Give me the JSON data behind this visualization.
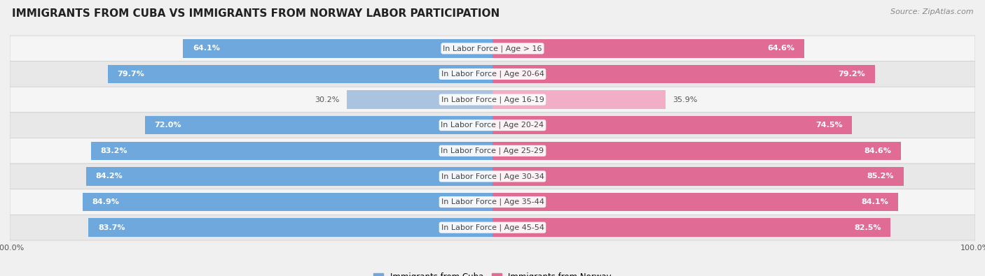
{
  "title": "IMMIGRANTS FROM CUBA VS IMMIGRANTS FROM NORWAY LABOR PARTICIPATION",
  "source": "Source: ZipAtlas.com",
  "categories": [
    "In Labor Force | Age > 16",
    "In Labor Force | Age 20-64",
    "In Labor Force | Age 16-19",
    "In Labor Force | Age 20-24",
    "In Labor Force | Age 25-29",
    "In Labor Force | Age 30-34",
    "In Labor Force | Age 35-44",
    "In Labor Force | Age 45-54"
  ],
  "cuba_values": [
    64.1,
    79.7,
    30.2,
    72.0,
    83.2,
    84.2,
    84.9,
    83.7
  ],
  "norway_values": [
    64.6,
    79.2,
    35.9,
    74.5,
    84.6,
    85.2,
    84.1,
    82.5
  ],
  "cuba_color": "#6fa8dc",
  "cuba_color_light": "#aac4e0",
  "norway_color": "#e06c96",
  "norway_color_light": "#f2adc7",
  "bar_max": 100.0,
  "background_color": "#f0f0f0",
  "row_bg_colors": [
    "#f5f5f5",
    "#e8e8e8"
  ],
  "row_border_color": "#cccccc",
  "legend_cuba": "Immigrants from Cuba",
  "legend_norway": "Immigrants from Norway",
  "title_fontsize": 11,
  "label_fontsize": 8,
  "value_fontsize": 8,
  "footer_fontsize": 8,
  "source_fontsize": 8
}
